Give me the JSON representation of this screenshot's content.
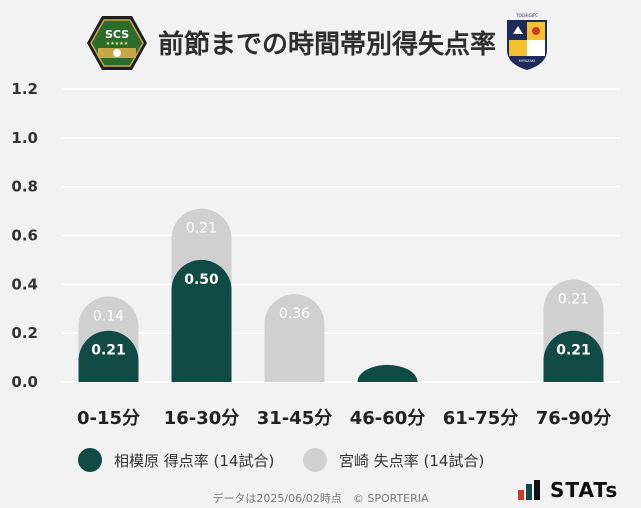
{
  "header": {
    "title": "前節までの時間帯別得失点率",
    "home_logo_text": "SCS",
    "away_logo_text": "TOCHIGIFC MIYAZAKI"
  },
  "legend": {
    "home": "相模原 得点率 (14試合)",
    "away": "宮崎 失点率 (14試合)"
  },
  "footer": {
    "note": "データは2025/06/02時点　© SPORTERIA",
    "brand": "STATs"
  },
  "colors": {
    "home": "#0f4a44",
    "away": "#d0d0d0",
    "grid": "#ffffff",
    "background": "#f2f2f2"
  },
  "chart_data": {
    "type": "bar",
    "categories": [
      "0-15分",
      "16-30分",
      "31-45分",
      "46-60分",
      "61-75分",
      "76-90分"
    ],
    "series": [
      {
        "name": "相模原 得点率 (14試合)",
        "values": [
          0.21,
          0.5,
          0.0,
          0.07,
          0.0,
          0.21
        ],
        "labels": [
          "0.21",
          "0.50",
          "",
          "",
          "",
          "0.21"
        ]
      },
      {
        "name": "宮崎 失点率 (14試合)",
        "values": [
          0.14,
          0.21,
          0.36,
          0.0,
          0.0,
          0.21
        ],
        "labels": [
          "0.14",
          "0.21",
          "0.36",
          "",
          "",
          "0.21"
        ]
      }
    ],
    "stacked": true,
    "ylim": [
      0,
      1.2
    ],
    "yticks": [
      "0.0",
      "0.2",
      "0.4",
      "0.6",
      "0.8",
      "1.0",
      "1.2"
    ],
    "grid": true
  }
}
